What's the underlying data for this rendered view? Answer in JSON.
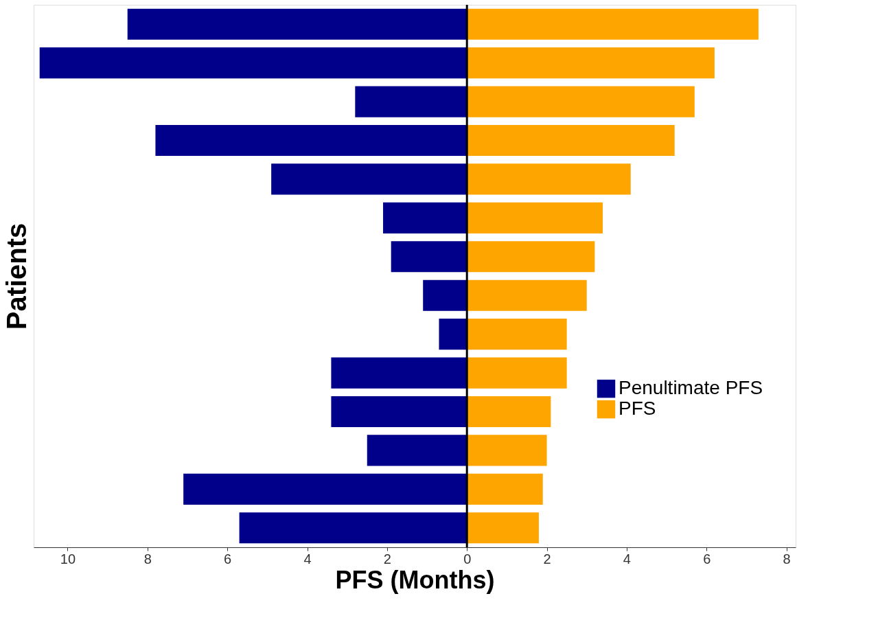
{
  "chart_data": {
    "type": "bar",
    "orientation": "horizontal",
    "xlabel": "PFS (Months)",
    "ylabel": "Patients",
    "categories": [
      null,
      null,
      null,
      null,
      null,
      null,
      null,
      null,
      null,
      null,
      null,
      null,
      null,
      null
    ],
    "series": [
      {
        "name": "Penultimate PFS",
        "color": "#00008b",
        "values": [
          -8.5,
          -10.7,
          -2.8,
          -7.8,
          -4.9,
          -2.1,
          -1.9,
          -1.1,
          -0.7,
          -3.4,
          -3.4,
          -2.5,
          -7.1,
          -5.7
        ]
      },
      {
        "name": "PFS",
        "color": "#ffa500",
        "values": [
          7.3,
          6.2,
          5.7,
          5.2,
          4.1,
          3.4,
          3.2,
          3.0,
          2.5,
          2.5,
          2.1,
          2.0,
          1.9,
          1.8
        ]
      }
    ],
    "xlim": [
      -10.85,
      8.23
    ],
    "xticks": [
      {
        "value": -10,
        "label": "10"
      },
      {
        "value": -8,
        "label": "8"
      },
      {
        "value": -6,
        "label": "6"
      },
      {
        "value": -4,
        "label": "4"
      },
      {
        "value": -2,
        "label": "2"
      },
      0,
      2,
      4,
      6,
      8
    ],
    "ref_lines": [
      {
        "axis": "x",
        "value": 0,
        "color": "#000000"
      }
    ],
    "tick_labels": "x",
    "grid": false,
    "legend": "right",
    "stacked": true
  }
}
